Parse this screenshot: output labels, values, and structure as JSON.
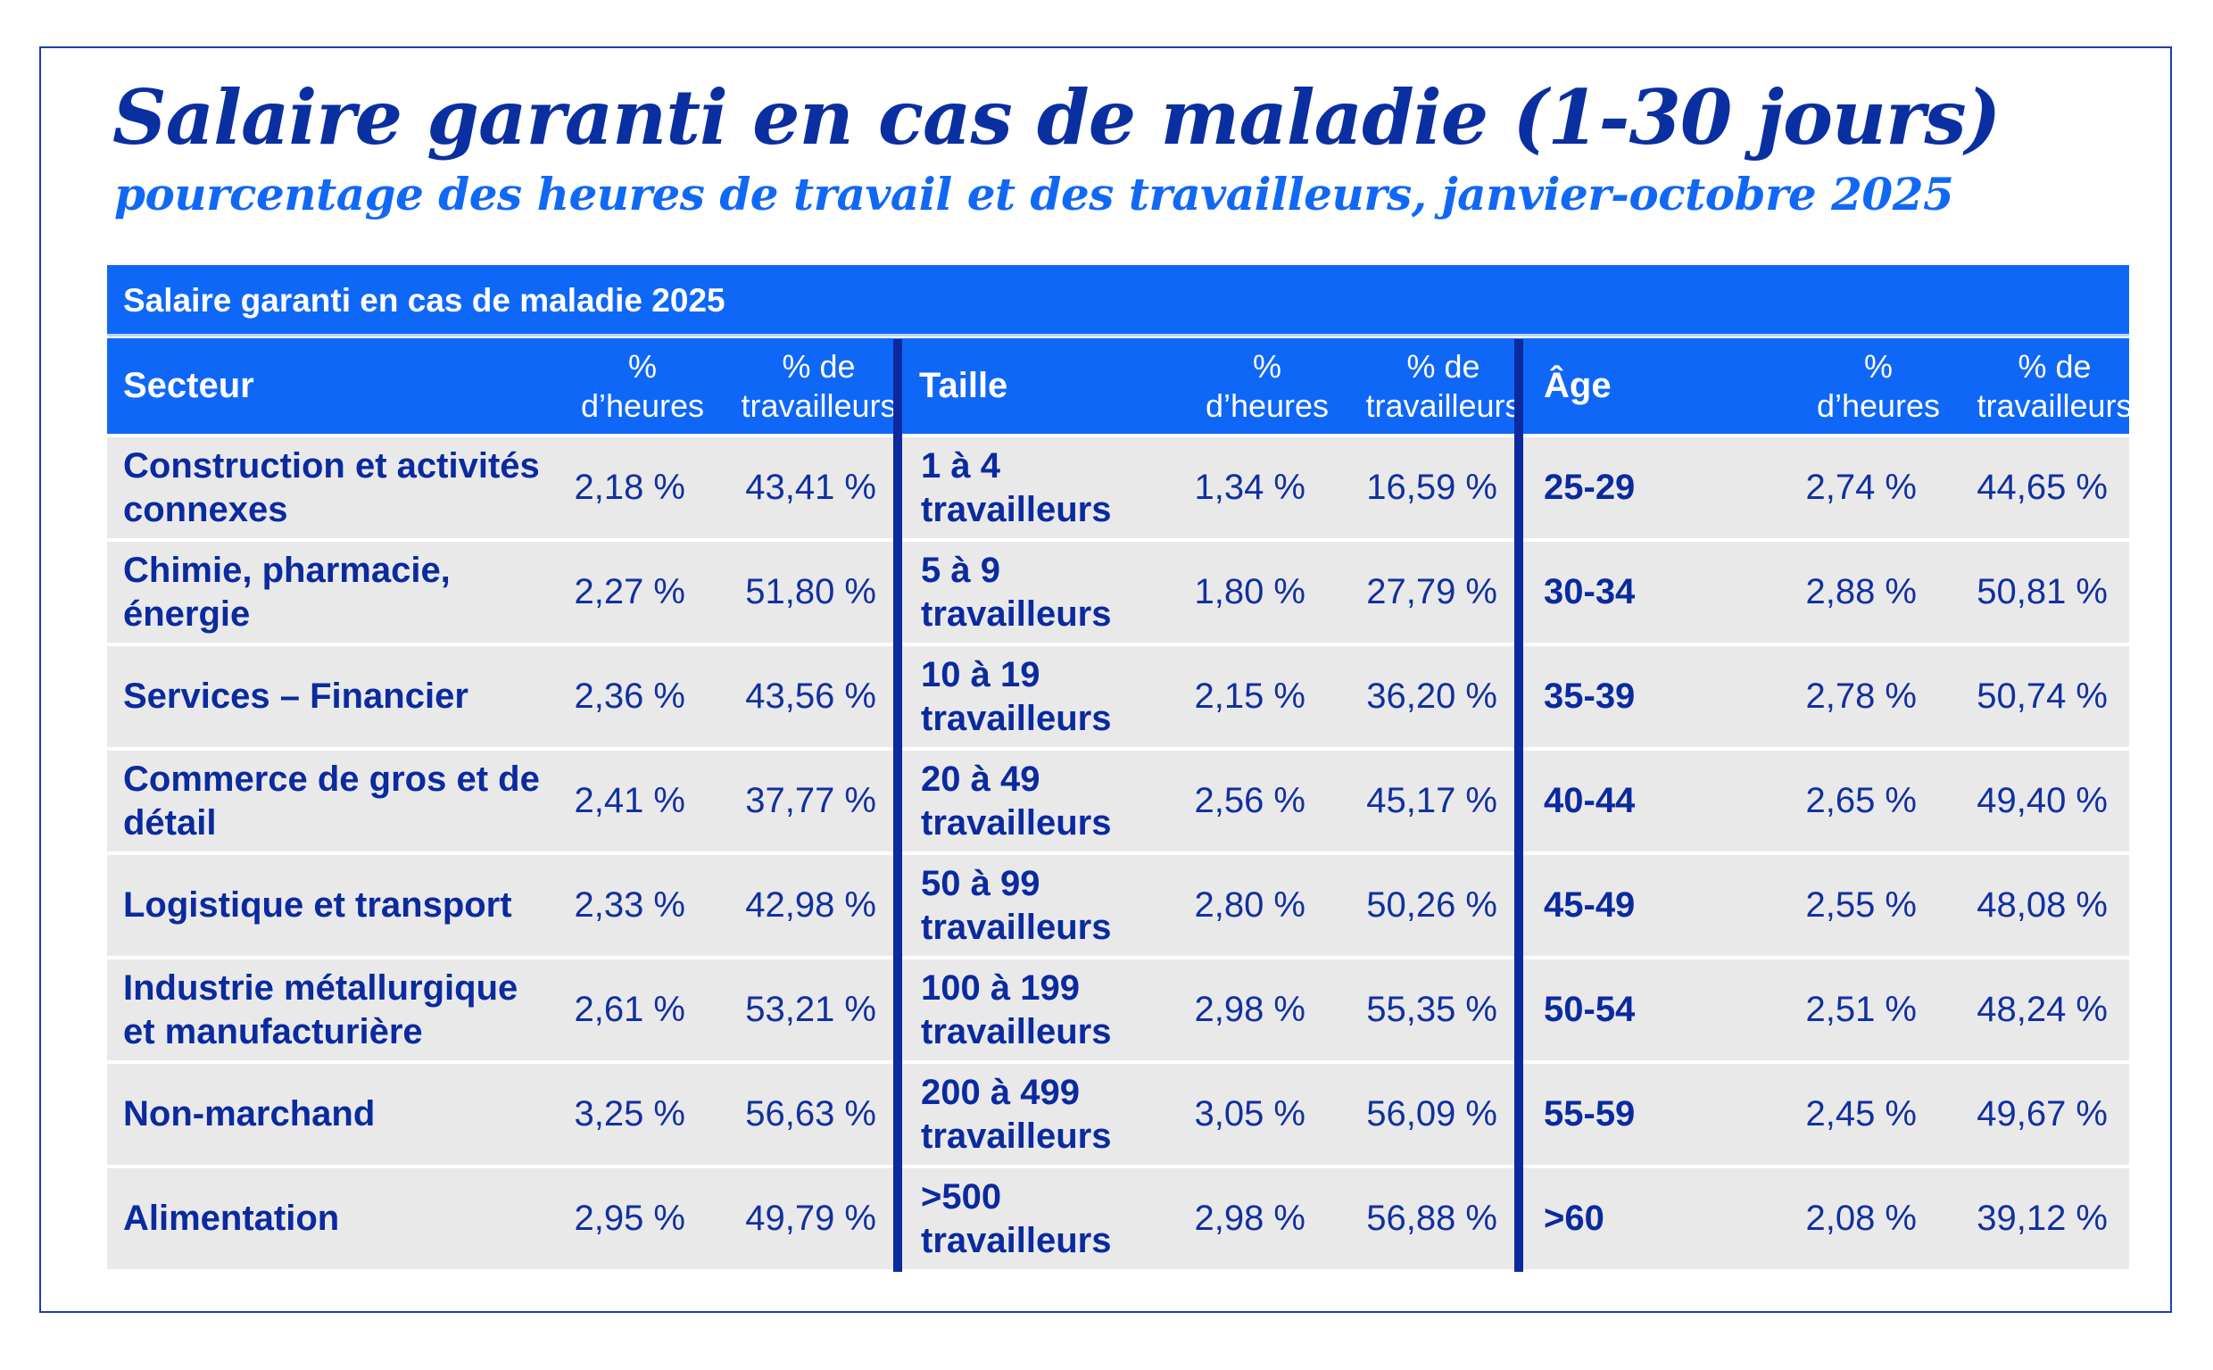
{
  "title": "Salaire garanti en cas de maladie (1-30 jours)",
  "subtitle": "pourcentage des heures de travail et des travailleurs, janvier-octobre 2025",
  "colors": {
    "title": "#0a2fa0",
    "subtitle": "#1168f5",
    "header_bg": "#0f67f7",
    "row_bg": "#e9e9ea",
    "text": "#0a2a9e",
    "divider": "#0a2a9e"
  },
  "table": {
    "caption": "Salaire garanti en cas de maladie 2025",
    "groups": [
      {
        "label": "Secteur",
        "col_hours": "% d’heures",
        "col_workers": "% de travailleurs"
      },
      {
        "label": "Taille",
        "col_hours": "% d’heures",
        "col_workers": "% de travailleurs"
      },
      {
        "label": "Âge",
        "col_hours": "% d’heures",
        "col_workers": "% de travailleurs"
      }
    ],
    "header_hours_line1": "%",
    "header_hours_line2": "d’heures",
    "header_workers_line1": "% de",
    "header_workers_line2": "travailleurs",
    "rows": [
      {
        "sector": "Construction et activités connexes",
        "sector_hours": "2,18 %",
        "sector_workers": "43,41 %",
        "size": "1 à 4 travailleurs",
        "size_hours": "1,34 %",
        "size_workers": "16,59 %",
        "age": "25-29",
        "age_hours": "2,74 %",
        "age_workers": "44,65 %"
      },
      {
        "sector": "Chimie, pharmacie, énergie",
        "sector_hours": "2,27 %",
        "sector_workers": "51,80 %",
        "size": "5 à 9 travailleurs",
        "size_hours": "1,80 %",
        "size_workers": "27,79 %",
        "age": "30-34",
        "age_hours": "2,88 %",
        "age_workers": "50,81 %"
      },
      {
        "sector": "Services – Financier",
        "sector_hours": "2,36 %",
        "sector_workers": "43,56 %",
        "size": "10 à 19 travailleurs",
        "size_hours": "2,15 %",
        "size_workers": "36,20 %",
        "age": "35-39",
        "age_hours": "2,78 %",
        "age_workers": "50,74 %"
      },
      {
        "sector": "Commerce de gros et de détail",
        "sector_hours": "2,41 %",
        "sector_workers": "37,77 %",
        "size": "20 à 49 travailleurs",
        "size_hours": "2,56 %",
        "size_workers": "45,17 %",
        "age": "40-44",
        "age_hours": "2,65 %",
        "age_workers": "49,40 %"
      },
      {
        "sector": "Logistique et transport",
        "sector_hours": "2,33 %",
        "sector_workers": "42,98 %",
        "size": "50 à 99 travailleurs",
        "size_hours": "2,80 %",
        "size_workers": "50,26 %",
        "age": "45-49",
        "age_hours": "2,55 %",
        "age_workers": "48,08 %"
      },
      {
        "sector": "Industrie métallurgique et manufacturière",
        "sector_hours": "2,61 %",
        "sector_workers": "53,21 %",
        "size": "100 à 199 travailleurs",
        "size_hours": "2,98 %",
        "size_workers": "55,35 %",
        "age": "50-54",
        "age_hours": "2,51 %",
        "age_workers": "48,24 %"
      },
      {
        "sector": "Non-marchand",
        "sector_hours": "3,25 %",
        "sector_workers": "56,63 %",
        "size": "200 à 499 travailleurs",
        "size_hours": "3,05 %",
        "size_workers": "56,09 %",
        "age": "55-59",
        "age_hours": "2,45 %",
        "age_workers": "49,67 %"
      },
      {
        "sector": "Alimentation",
        "sector_hours": "2,95 %",
        "sector_workers": "49,79 %",
        "size": ">500 travailleurs",
        "size_hours": "2,98 %",
        "size_workers": "56,88 %",
        "age": ">60",
        "age_hours": "2,08 %",
        "age_workers": "39,12 %"
      }
    ]
  }
}
